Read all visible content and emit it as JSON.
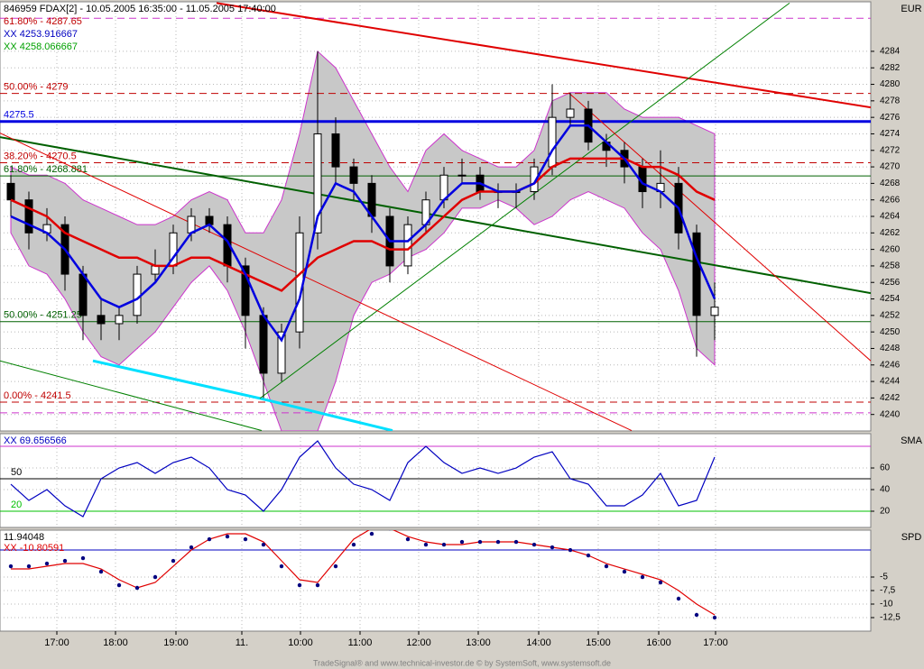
{
  "chart_data": [
    {
      "type": "candlestick",
      "title": "846959  FDAX[2] - 10.05.2005 16:35:00 - 11.05.2005 17:40:00",
      "axis_label": "EUR",
      "grid": true,
      "x": [
        0,
        1,
        2,
        3,
        4,
        5,
        6,
        7,
        8,
        9,
        10,
        11,
        12,
        13,
        14,
        15,
        16,
        17,
        18,
        19,
        20,
        21,
        22,
        23,
        24,
        25,
        26,
        27,
        28,
        29,
        30,
        31,
        32,
        33,
        34,
        35,
        36,
        37,
        38,
        39
      ],
      "xlim": [
        -0.6,
        47.65
      ],
      "xticks": [
        {
          "value": 2.55,
          "label": "17:00"
        },
        {
          "value": 5.8,
          "label": "18:00"
        },
        {
          "value": 9.15,
          "label": "19:00"
        },
        {
          "value": 12.8,
          "label": "11."
        },
        {
          "value": 16.05,
          "label": "10:00"
        },
        {
          "value": 19.35,
          "label": "11:00"
        },
        {
          "value": 22.6,
          "label": "12:00"
        },
        {
          "value": 25.9,
          "label": "13:00"
        },
        {
          "value": 29.25,
          "label": "14:00"
        },
        {
          "value": 32.55,
          "label": "15:00"
        },
        {
          "value": 35.9,
          "label": "16:00"
        },
        {
          "value": 39.05,
          "label": "17:00"
        }
      ],
      "ylim": [
        4238,
        4290
      ],
      "yticks": [
        4240,
        4242,
        4244,
        4246,
        4248,
        4250,
        4252,
        4254,
        4256,
        4258,
        4260,
        4262,
        4264,
        4266,
        4268,
        4270,
        4272,
        4274,
        4276,
        4278,
        4280,
        4282,
        4284
      ],
      "open": [
        4268,
        4266,
        4262,
        4263,
        4257,
        4252,
        4251,
        4252,
        4257,
        4258,
        4262,
        4264,
        4263,
        4258,
        4252,
        4245,
        4250,
        4262,
        4274,
        4270,
        4268,
        4264,
        4258,
        4263,
        4266,
        4269,
        4269,
        4267,
        4267,
        4267,
        4270,
        4276,
        4277,
        4273,
        4272,
        4270,
        4267,
        4268,
        4262,
        4252
      ],
      "high": [
        4269,
        4267,
        4265,
        4264,
        4258,
        4254,
        4253,
        4258,
        4260,
        4263,
        4265,
        4265,
        4264,
        4259,
        4253,
        4251,
        4264,
        4284,
        4276,
        4271,
        4269,
        4265,
        4264,
        4267,
        4270,
        4271,
        4270,
        4268,
        4268,
        4271,
        4280,
        4279,
        4278,
        4274,
        4273,
        4271,
        4272,
        4270,
        4263,
        4256
      ],
      "low": [
        4264,
        4260,
        4261,
        4255,
        4249,
        4249,
        4249,
        4251,
        4256,
        4257,
        4261,
        4262,
        4256,
        4248,
        4242,
        4244,
        4248,
        4260,
        4268,
        4266,
        4262,
        4256,
        4257,
        4262,
        4265,
        4268,
        4266,
        4265,
        4265,
        4266,
        4269,
        4275,
        4272,
        4270,
        4268,
        4265,
        4265,
        4260,
        4247,
        4249
      ],
      "close": [
        4266,
        4262,
        4263,
        4257,
        4252,
        4251,
        4252,
        4257,
        4258,
        4262,
        4264,
        4263,
        4258,
        4252,
        4245,
        4250,
        4262,
        4274,
        4270,
        4268,
        4264,
        4258,
        4263,
        4266,
        4269,
        4269,
        4267,
        4267,
        4267,
        4270,
        4276,
        4277,
        4273,
        4272,
        4270,
        4267,
        4268,
        4262,
        4252,
        4253
      ],
      "band": {
        "color": "#c8c8c8",
        "edge": "#cc33cc",
        "upper": [
          4270,
          4269,
          4269,
          4268,
          4266,
          4265,
          4264,
          4263,
          4263,
          4264,
          4266,
          4267,
          4266,
          4262,
          4262,
          4266,
          4274,
          4284,
          4282,
          4278,
          4274,
          4270,
          4267,
          4272,
          4274,
          4272,
          4271,
          4270,
          4270,
          4272,
          4278,
          4279,
          4279,
          4279,
          4277,
          4276,
          4276,
          4276,
          4275,
          4274
        ],
        "lower": [
          4262,
          4258,
          4257,
          4254,
          4250,
          4247,
          4246,
          4248,
          4250,
          4253,
          4256,
          4258,
          4255,
          4250,
          4244,
          4238,
          4238,
          4238,
          4244,
          4252,
          4256,
          4257,
          4259,
          4260,
          4262,
          4265,
          4265,
          4266,
          4265,
          4263,
          4264,
          4266,
          4267,
          4266,
          4265,
          4262,
          4260,
          4255,
          4248,
          4246
        ]
      },
      "series": [
        {
          "color": "#e00000",
          "values": [
            4266,
            4265,
            4264,
            4262,
            4261,
            4260,
            4259,
            4259,
            4258,
            4258,
            4259,
            4259,
            4258,
            4257,
            4256,
            4255,
            4257,
            4259,
            4260,
            4261,
            4261,
            4260,
            4260,
            4262,
            4264,
            4266,
            4267,
            4267,
            4267,
            4268,
            4270,
            4271,
            4271,
            4271,
            4271,
            4270,
            4270,
            4269,
            4267,
            4266
          ]
        },
        {
          "color": "#0000e0",
          "values": [
            4264,
            4263,
            4262,
            4260,
            4257,
            4254,
            4253,
            4254,
            4256,
            4259,
            4262,
            4263,
            4261,
            4257,
            4252,
            4249,
            4254,
            4264,
            4268,
            4267,
            4264,
            4261,
            4261,
            4263,
            4266,
            4268,
            4268,
            4267,
            4267,
            4268,
            4272,
            4275,
            4275,
            4273,
            4271,
            4268,
            4267,
            4265,
            4259,
            4254
          ]
        }
      ],
      "trendlines": [
        {
          "color": "#e00000",
          "width": 2,
          "x": [
            11.4,
            47.65
          ],
          "values": [
            4289.85,
            4277.2
          ]
        },
        {
          "color": "#006000",
          "width": 2,
          "x": [
            -0.6,
            47.65
          ],
          "values": [
            4273.6,
            4254.7
          ]
        },
        {
          "color": "#00e0ff",
          "width": 3,
          "x": [
            4.55,
            13.8
          ],
          "values": [
            4246.5,
            4241.95
          ]
        },
        {
          "color": "#00e0ff",
          "width": 3,
          "x": [
            13.8,
            21.15
          ],
          "values": [
            4241.95,
            4238.05
          ]
        },
        {
          "color": "#008000",
          "width": 1,
          "x": [
            13.8,
            43.15
          ],
          "values": [
            4241.95,
            4289.85
          ]
        },
        {
          "color": "#e00000",
          "width": 1,
          "x": [
            -0.6,
            34.4
          ],
          "values": [
            4274.1,
            4238.05
          ]
        },
        {
          "color": "#e00000",
          "width": 1,
          "x": [
            30.9,
            47.65
          ],
          "values": [
            4279,
            4246.5
          ]
        },
        {
          "color": "#008000",
          "width": 1,
          "x": [
            -0.6,
            13.9
          ],
          "values": [
            4246.5,
            4238.05
          ]
        }
      ],
      "levels": [
        {
          "value": 4288,
          "color": "#cc33cc",
          "dash": true
        },
        {
          "value": 4278.9,
          "label": "50.00% - 4279",
          "color": "#c00000",
          "dash": true
        },
        {
          "value": 4275.5,
          "label": "4275.5",
          "color": "#0000e0",
          "width": 3
        },
        {
          "value": 4270.5,
          "label": "38.20% - 4270.5",
          "color": "#c00000",
          "dash": true
        },
        {
          "value": 4268.9,
          "label": "61.80% - 4268.881",
          "color": "#006000"
        },
        {
          "value": 4251.25,
          "label": "50.00% - 4251.25",
          "color": "#006000"
        },
        {
          "value": 4241.5,
          "label": "0.00% - 4241.5",
          "color": "#c00000",
          "dash": true
        },
        {
          "value": 4240.2,
          "color": "#cc33cc",
          "dash": true
        }
      ],
      "annotations": [
        {
          "text": "61.80% - 4287.65",
          "color": "#c00000"
        },
        {
          "text": "XX 4253.916667",
          "color": "#0000c0"
        },
        {
          "text": "XX 4258.066667",
          "color": "#00a000"
        }
      ]
    },
    {
      "type": "line",
      "axis_label": "SMA",
      "grid": true,
      "ylim": [
        5,
        91.7
      ],
      "yticks": [
        20,
        40,
        60
      ],
      "series": [
        {
          "color": "#0000c0",
          "values": [
            45,
            30,
            40,
            25,
            15,
            50,
            60,
            65,
            55,
            65,
            70,
            60,
            40,
            35,
            20,
            40,
            70,
            85,
            60,
            45,
            40,
            30,
            65,
            80,
            65,
            55,
            60,
            55,
            60,
            70,
            75,
            50,
            45,
            25,
            25,
            35,
            55,
            25,
            30,
            70
          ]
        }
      ],
      "levels": [
        {
          "value": 80,
          "color": "#cc33cc"
        },
        {
          "value": 50,
          "label": "50",
          "color": "#000000"
        },
        {
          "value": 20,
          "label": "20",
          "color": "#00c000"
        }
      ],
      "annotations": [
        {
          "text": "XX 69.656566",
          "color": "#0000c0"
        }
      ]
    },
    {
      "type": "line",
      "axis_label": "SPD",
      "grid": true,
      "ylim": [
        -15,
        3.67
      ],
      "yticks": [
        -5,
        {
          "value": -7.5,
          "label": "-7,5"
        },
        -10,
        {
          "value": -12.5,
          "label": "-12,5"
        }
      ],
      "series": [
        {
          "color": "#e00000",
          "values": [
            -3.5,
            -3.5,
            -3,
            -2.5,
            -2.5,
            -3.5,
            -5.5,
            -7,
            -6,
            -3,
            0,
            2,
            3,
            3,
            1.5,
            -2,
            -5.5,
            -6,
            -2,
            2,
            4,
            4,
            2.5,
            1.5,
            1,
            1,
            1.5,
            1.5,
            1.5,
            1,
            0.5,
            0,
            -1,
            -2.5,
            -3.5,
            -4.5,
            -5.5,
            -7.5,
            -10,
            -12
          ]
        },
        {
          "color": "#000080",
          "style": "dots",
          "values": [
            -3,
            -3,
            -2.5,
            -2,
            -1.5,
            -4,
            -6.5,
            -7,
            -5,
            -2,
            0.5,
            2,
            2.5,
            2,
            1,
            -3,
            -6.5,
            -6.5,
            -3,
            1,
            3,
            4,
            2,
            1,
            1,
            1.5,
            1.5,
            1.5,
            1.5,
            1,
            0.5,
            0,
            -1,
            -3,
            -4,
            -5,
            -6,
            -9,
            -12,
            -12.5
          ]
        }
      ],
      "levels": [
        {
          "value": 0,
          "color": "#0000c0"
        }
      ],
      "annotations": [
        {
          "text": "11.94048",
          "color": "#000000"
        },
        {
          "text": "XX -10.80591",
          "color": "#e00000"
        }
      ]
    }
  ],
  "footer": "TradeSignal® and www.technical-investor.de © by SystemSoft, www.systemsoft.de"
}
